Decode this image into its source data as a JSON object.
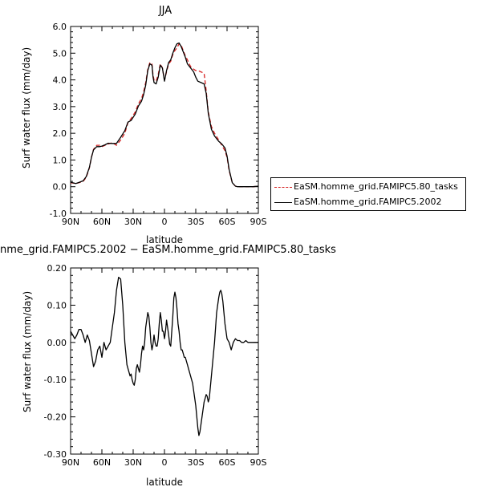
{
  "chart_data": [
    {
      "type": "line",
      "title": "JJA",
      "xlabel": "latitude",
      "ylabel": "Surf water flux (mm/day)",
      "x_ticks": [
        "90N",
        "60N",
        "30N",
        "0",
        "30S",
        "60S",
        "90S"
      ],
      "xlim": [
        -90,
        90
      ],
      "ylim": [
        -1.0,
        6.0
      ],
      "y_ticks": [
        "-1.0",
        "0.0",
        "1.0",
        "2.0",
        "3.0",
        "4.0",
        "5.0",
        "6.0"
      ],
      "y_tick_values": [
        -1,
        0,
        1,
        2,
        3,
        4,
        5,
        6
      ],
      "grid": false,
      "legend_position": "right",
      "series": [
        {
          "name": "EaSM.homme_grid.FAMIPC5.80_tasks",
          "color": "#d62020",
          "style": "dashed",
          "x": [
            -90,
            -85,
            -82,
            -78,
            -75,
            -72,
            -70,
            -68,
            -65,
            -62,
            -60,
            -57,
            -54,
            -50,
            -46,
            -42,
            -38,
            -35,
            -32,
            -28,
            -25,
            -22,
            -20,
            -18,
            -16,
            -14,
            -12,
            -11,
            -10,
            -8,
            -6,
            -4,
            -2,
            0,
            2,
            4,
            6,
            8,
            10,
            12,
            14,
            16,
            18,
            20,
            22,
            25,
            28,
            30,
            32,
            35,
            38,
            40,
            42,
            45,
            48,
            52,
            55,
            58,
            60,
            62,
            65,
            68,
            70,
            72,
            75,
            78,
            80,
            85,
            90
          ],
          "values": [
            0.15,
            0.12,
            0.15,
            0.2,
            0.35,
            0.7,
            1.1,
            1.4,
            1.55,
            1.55,
            1.5,
            1.55,
            1.6,
            1.65,
            1.55,
            1.75,
            2.0,
            2.4,
            2.55,
            2.8,
            3.1,
            3.3,
            3.55,
            3.9,
            4.4,
            4.65,
            4.6,
            4.2,
            4.0,
            3.95,
            4.2,
            4.6,
            4.45,
            4.0,
            4.3,
            4.6,
            4.7,
            4.95,
            5.1,
            5.2,
            5.35,
            5.3,
            5.1,
            4.9,
            4.75,
            4.5,
            4.4,
            4.35,
            4.35,
            4.3,
            4.25,
            3.6,
            2.8,
            2.25,
            2.0,
            1.75,
            1.55,
            1.35,
            1.1,
            0.6,
            0.15,
            0.02,
            0.0,
            0.0,
            0.0,
            0.0,
            0.0,
            0.0,
            0.02
          ]
        },
        {
          "name": "EaSM.homme_grid.FAMIPC5.2002",
          "color": "#000000",
          "style": "solid",
          "x": [
            -90,
            -85,
            -82,
            -78,
            -75,
            -72,
            -70,
            -68,
            -65,
            -62,
            -60,
            -57,
            -54,
            -50,
            -46,
            -42,
            -38,
            -35,
            -32,
            -28,
            -25,
            -22,
            -20,
            -18,
            -16,
            -14,
            -12,
            -11,
            -10,
            -8,
            -6,
            -4,
            -2,
            0,
            2,
            4,
            6,
            8,
            10,
            12,
            14,
            16,
            18,
            20,
            22,
            25,
            28,
            30,
            32,
            35,
            38,
            40,
            42,
            45,
            48,
            52,
            55,
            58,
            60,
            62,
            65,
            68,
            70,
            72,
            75,
            78,
            80,
            85,
            90
          ],
          "values": [
            0.17,
            0.12,
            0.16,
            0.22,
            0.38,
            0.72,
            1.1,
            1.38,
            1.5,
            1.5,
            1.52,
            1.57,
            1.63,
            1.62,
            1.62,
            1.85,
            2.1,
            2.42,
            2.48,
            2.72,
            3.02,
            3.2,
            3.45,
            3.8,
            4.35,
            4.6,
            4.55,
            4.12,
            3.9,
            3.85,
            4.1,
            4.55,
            4.45,
            3.95,
            4.35,
            4.65,
            4.75,
            5.0,
            5.2,
            5.35,
            5.38,
            5.25,
            5.05,
            4.85,
            4.6,
            4.45,
            4.3,
            4.1,
            3.95,
            3.9,
            3.85,
            3.5,
            2.75,
            2.15,
            1.9,
            1.7,
            1.6,
            1.45,
            1.15,
            0.65,
            0.15,
            0.02,
            0.0,
            0.0,
            0.0,
            0.0,
            0.0,
            0.0,
            0.02
          ]
        }
      ]
    },
    {
      "type": "line",
      "title": "nme_grid.FAMIPC5.2002 − EaSM.homme_grid.FAMIPC5.80_tasks",
      "xlabel": "latitude",
      "ylabel": "Surf water flux (mm/day)",
      "x_ticks": [
        "90N",
        "60N",
        "30N",
        "0",
        "30S",
        "60S",
        "90S"
      ],
      "xlim": [
        -90,
        90
      ],
      "ylim": [
        -0.3,
        0.2
      ],
      "y_ticks": [
        "-0.30",
        "-0.20",
        "-0.10",
        "0.00",
        "0.10",
        "0.20"
      ],
      "y_tick_values": [
        -0.3,
        -0.2,
        -0.1,
        0.0,
        0.1,
        0.2
      ],
      "grid": false,
      "series": [
        {
          "color": "#000000",
          "style": "solid",
          "x": [
            -90,
            -88,
            -86,
            -84,
            -82,
            -80,
            -78,
            -76,
            -74,
            -72,
            -70,
            -68,
            -66,
            -64,
            -62,
            -60,
            -58,
            -56,
            -54,
            -52,
            -50,
            -48,
            -46,
            -44,
            -42,
            -40,
            -39,
            -38,
            -37,
            -36,
            -35,
            -34,
            -33,
            -32,
            -31,
            -30,
            -29,
            -28,
            -27,
            -26,
            -25,
            -24,
            -23,
            -22,
            -21,
            -20,
            -19,
            -18,
            -17,
            -16,
            -15,
            -14,
            -13,
            -12,
            -11,
            -10,
            -9,
            -8,
            -7,
            -6,
            -5,
            -4,
            -3,
            -2,
            -1,
            0,
            1,
            2,
            3,
            4,
            5,
            6,
            7,
            8,
            9,
            10,
            11,
            12,
            13,
            14,
            15,
            16,
            17,
            18,
            19,
            20,
            21,
            22,
            23,
            24,
            25,
            26,
            27,
            28,
            29,
            30,
            31,
            32,
            33,
            34,
            35,
            36,
            37,
            38,
            39,
            40,
            41,
            42,
            43,
            44,
            45,
            46,
            47,
            48,
            49,
            50,
            51,
            52,
            53,
            54,
            55,
            56,
            57,
            58,
            59,
            60,
            62,
            64,
            66,
            68,
            70,
            72,
            74,
            76,
            78,
            80,
            82,
            84,
            86,
            88,
            90
          ],
          "values": [
            0.03,
            0.02,
            0.01,
            0.02,
            0.035,
            0.035,
            0.02,
            0.0,
            0.02,
            0.005,
            -0.03,
            -0.065,
            -0.05,
            -0.02,
            -0.01,
            -0.04,
            0.0,
            -0.02,
            -0.01,
            0.0,
            0.04,
            0.08,
            0.14,
            0.175,
            0.17,
            0.1,
            0.05,
            0.0,
            -0.03,
            -0.06,
            -0.07,
            -0.08,
            -0.09,
            -0.085,
            -0.1,
            -0.11,
            -0.115,
            -0.1,
            -0.07,
            -0.06,
            -0.07,
            -0.08,
            -0.06,
            -0.03,
            -0.01,
            -0.02,
            0.0,
            0.04,
            0.06,
            0.08,
            0.07,
            0.04,
            0.0,
            -0.02,
            -0.005,
            0.02,
            0.0,
            -0.01,
            -0.01,
            0.01,
            0.05,
            0.08,
            0.06,
            0.03,
            0.03,
            0.01,
            0.03,
            0.06,
            0.04,
            0.02,
            -0.005,
            -0.01,
            0.03,
            0.07,
            0.12,
            0.135,
            0.12,
            0.09,
            0.05,
            0.03,
            0.0,
            -0.02,
            -0.02,
            -0.03,
            -0.04,
            -0.04,
            -0.05,
            -0.06,
            -0.07,
            -0.08,
            -0.09,
            -0.1,
            -0.11,
            -0.13,
            -0.15,
            -0.17,
            -0.2,
            -0.23,
            -0.25,
            -0.24,
            -0.22,
            -0.2,
            -0.18,
            -0.16,
            -0.15,
            -0.14,
            -0.145,
            -0.16,
            -0.15,
            -0.12,
            -0.09,
            -0.06,
            -0.03,
            0.0,
            0.04,
            0.08,
            0.1,
            0.12,
            0.135,
            0.14,
            0.13,
            0.11,
            0.08,
            0.05,
            0.03,
            0.01,
            0.0,
            -0.02,
            0.0,
            0.01,
            0.005,
            0.005,
            0.0,
            0.0,
            0.005,
            0.0,
            0.0,
            0.0,
            0.0,
            0.0,
            0.0
          ]
        }
      ]
    }
  ]
}
